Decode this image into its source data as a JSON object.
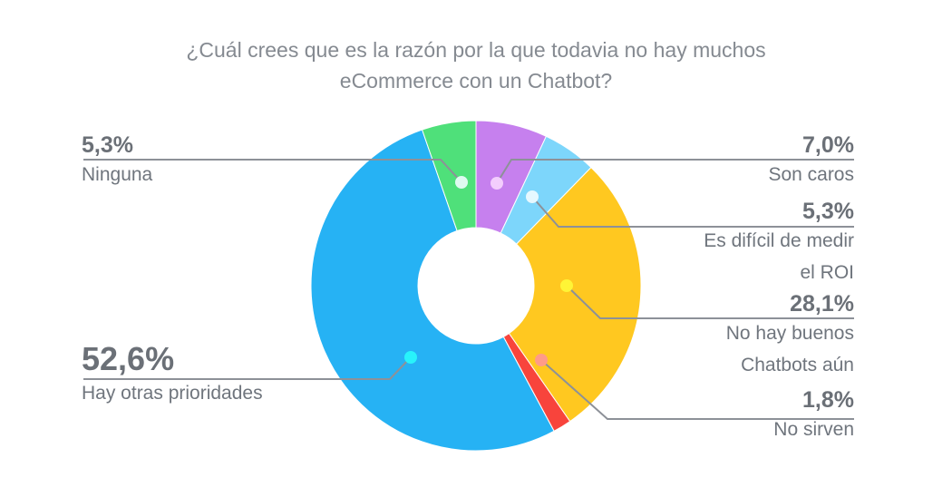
{
  "chart_data": {
    "type": "pie",
    "title_lines": [
      "¿Cuál crees que es la razón por la que todavia no hay muchos",
      "eCommerce con un Chatbot?"
    ],
    "slices": [
      {
        "label_lines": [
          "Son caros"
        ],
        "value_label": "7,0%",
        "value": 7.0,
        "color": "#c680ee",
        "dot": "#f3cdfd"
      },
      {
        "label_lines": [
          "Es difícil de medir",
          "el ROI"
        ],
        "value_label": "5,3%",
        "value": 5.3,
        "color": "#7dd6fb",
        "dot": "#e6f8ff"
      },
      {
        "label_lines": [
          "No hay buenos",
          "Chatbots aún"
        ],
        "value_label": "28,1%",
        "value": 28.1,
        "color": "#ffc820",
        "dot": "#fff436"
      },
      {
        "label_lines": [
          "No sirven"
        ],
        "value_label": "1,8%",
        "value": 1.8,
        "color": "#f8443c",
        "dot": "#ff9b88"
      },
      {
        "label_lines": [
          "Hay otras prioridades"
        ],
        "value_label": "52,6%",
        "value": 52.6,
        "color": "#26b2f4",
        "dot": "#28f3fb"
      },
      {
        "label_lines": [
          "Ninguna"
        ],
        "value_label": "5,3%",
        "value": 5.3,
        "color": "#4fe07a",
        "dot": "#dffaf0"
      }
    ]
  }
}
